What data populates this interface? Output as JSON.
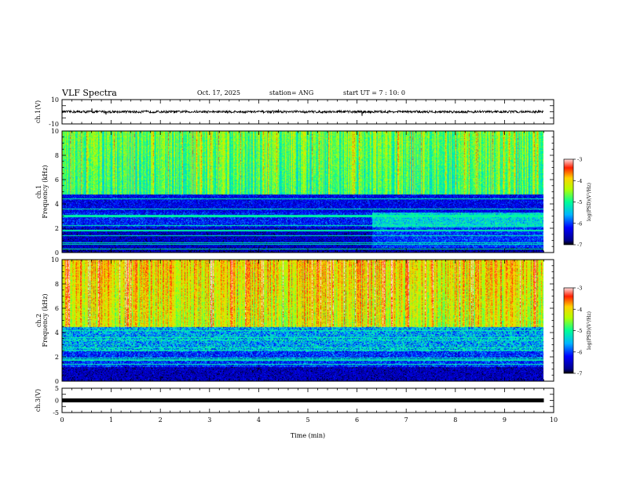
{
  "header": {
    "title": "VLF Spectra",
    "date": "Oct. 17, 2025",
    "station": "station= ANG",
    "start": "start  UT  =   7 : 10: 0"
  },
  "chart_data": [
    {
      "type": "line",
      "name": "ch1-waveform",
      "ylabel": "ch.1(V)",
      "ylim": [
        -10,
        10
      ],
      "yticks": [
        10,
        -10
      ],
      "xlim": [
        0,
        10
      ],
      "baseline": 0,
      "noise_amplitude_v": 1,
      "data_extent_min": 9.8
    },
    {
      "type": "heatmap",
      "name": "ch1-spectrogram",
      "ylabel": "Frequency (kHz)",
      "channel_label": "ch.1",
      "ylim": [
        0,
        10
      ],
      "yticks": [
        0,
        2,
        4,
        6,
        8,
        10
      ],
      "xlim": [
        0,
        10
      ],
      "data_extent_min": 9.8,
      "colorbar": {
        "label": "log(PSD)(V²/Hz)",
        "range": [
          -7,
          -3
        ],
        "ticks": [
          -3,
          -4,
          -5,
          -6,
          -7
        ]
      }
    },
    {
      "type": "heatmap",
      "name": "ch2-spectrogram",
      "ylabel": "Frequency (kHz)",
      "channel_label": "ch.2",
      "ylim": [
        0,
        10
      ],
      "yticks": [
        0,
        2,
        4,
        6,
        8,
        10
      ],
      "xlim": [
        0,
        10
      ],
      "data_extent_min": 9.8,
      "colorbar": {
        "label": "log(PSD)(V²/Hz)",
        "range": [
          -7,
          -3
        ],
        "ticks": [
          -3,
          -4,
          -5,
          -6,
          -7
        ]
      }
    },
    {
      "type": "line",
      "name": "ch3-waveform",
      "ylabel": "ch.3(V)",
      "ylim": [
        -5,
        5
      ],
      "yticks": [
        5,
        0,
        -5
      ],
      "xlim": [
        0,
        10
      ],
      "baseline": 0,
      "noise_amplitude_v": 0.3,
      "data_extent_min": 9.8
    }
  ],
  "xaxis": {
    "label": "Time  (min)",
    "ticks": [
      "0",
      "1",
      "2",
      "3",
      "4",
      "5",
      "6",
      "7",
      "8",
      "9",
      "10"
    ]
  }
}
